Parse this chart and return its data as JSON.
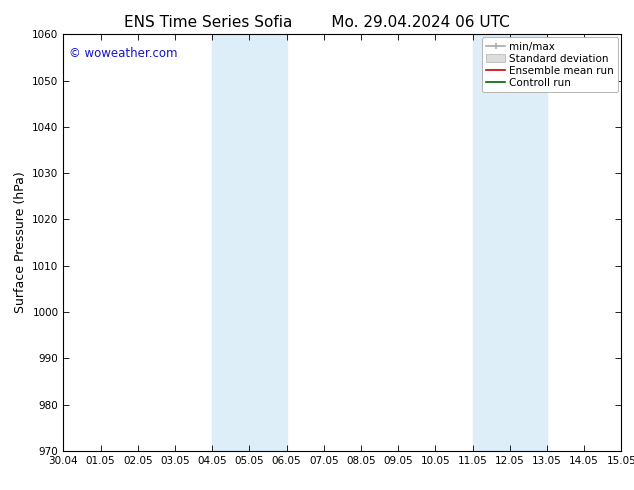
{
  "title_left": "ENS Time Series Sofia",
  "title_right": "Mo. 29.04.2024 06 UTC",
  "ylabel": "Surface Pressure (hPa)",
  "ylim": [
    970,
    1060
  ],
  "yticks": [
    970,
    980,
    990,
    1000,
    1010,
    1020,
    1030,
    1040,
    1050,
    1060
  ],
  "xtick_labels": [
    "30.04",
    "01.05",
    "02.05",
    "03.05",
    "04.05",
    "05.05",
    "06.05",
    "07.05",
    "08.05",
    "09.05",
    "10.05",
    "11.05",
    "12.05",
    "13.05",
    "14.05",
    "15.05"
  ],
  "xlim": [
    0,
    15
  ],
  "shaded_bands": [
    {
      "x_start": 4,
      "x_end": 6
    },
    {
      "x_start": 11,
      "x_end": 13
    }
  ],
  "band_color": "#ddeef8",
  "background_color": "#ffffff",
  "watermark_text": "© woweather.com",
  "watermark_color": "#1515cc",
  "legend_labels": [
    "min/max",
    "Standard deviation",
    "Ensemble mean run",
    "Controll run"
  ],
  "legend_colors_line": [
    "#aaaaaa",
    "#cccccc",
    "#cc0000",
    "#006600"
  ],
  "title_fontsize": 11,
  "tick_fontsize": 7.5,
  "ylabel_fontsize": 9,
  "legend_fontsize": 7.5
}
